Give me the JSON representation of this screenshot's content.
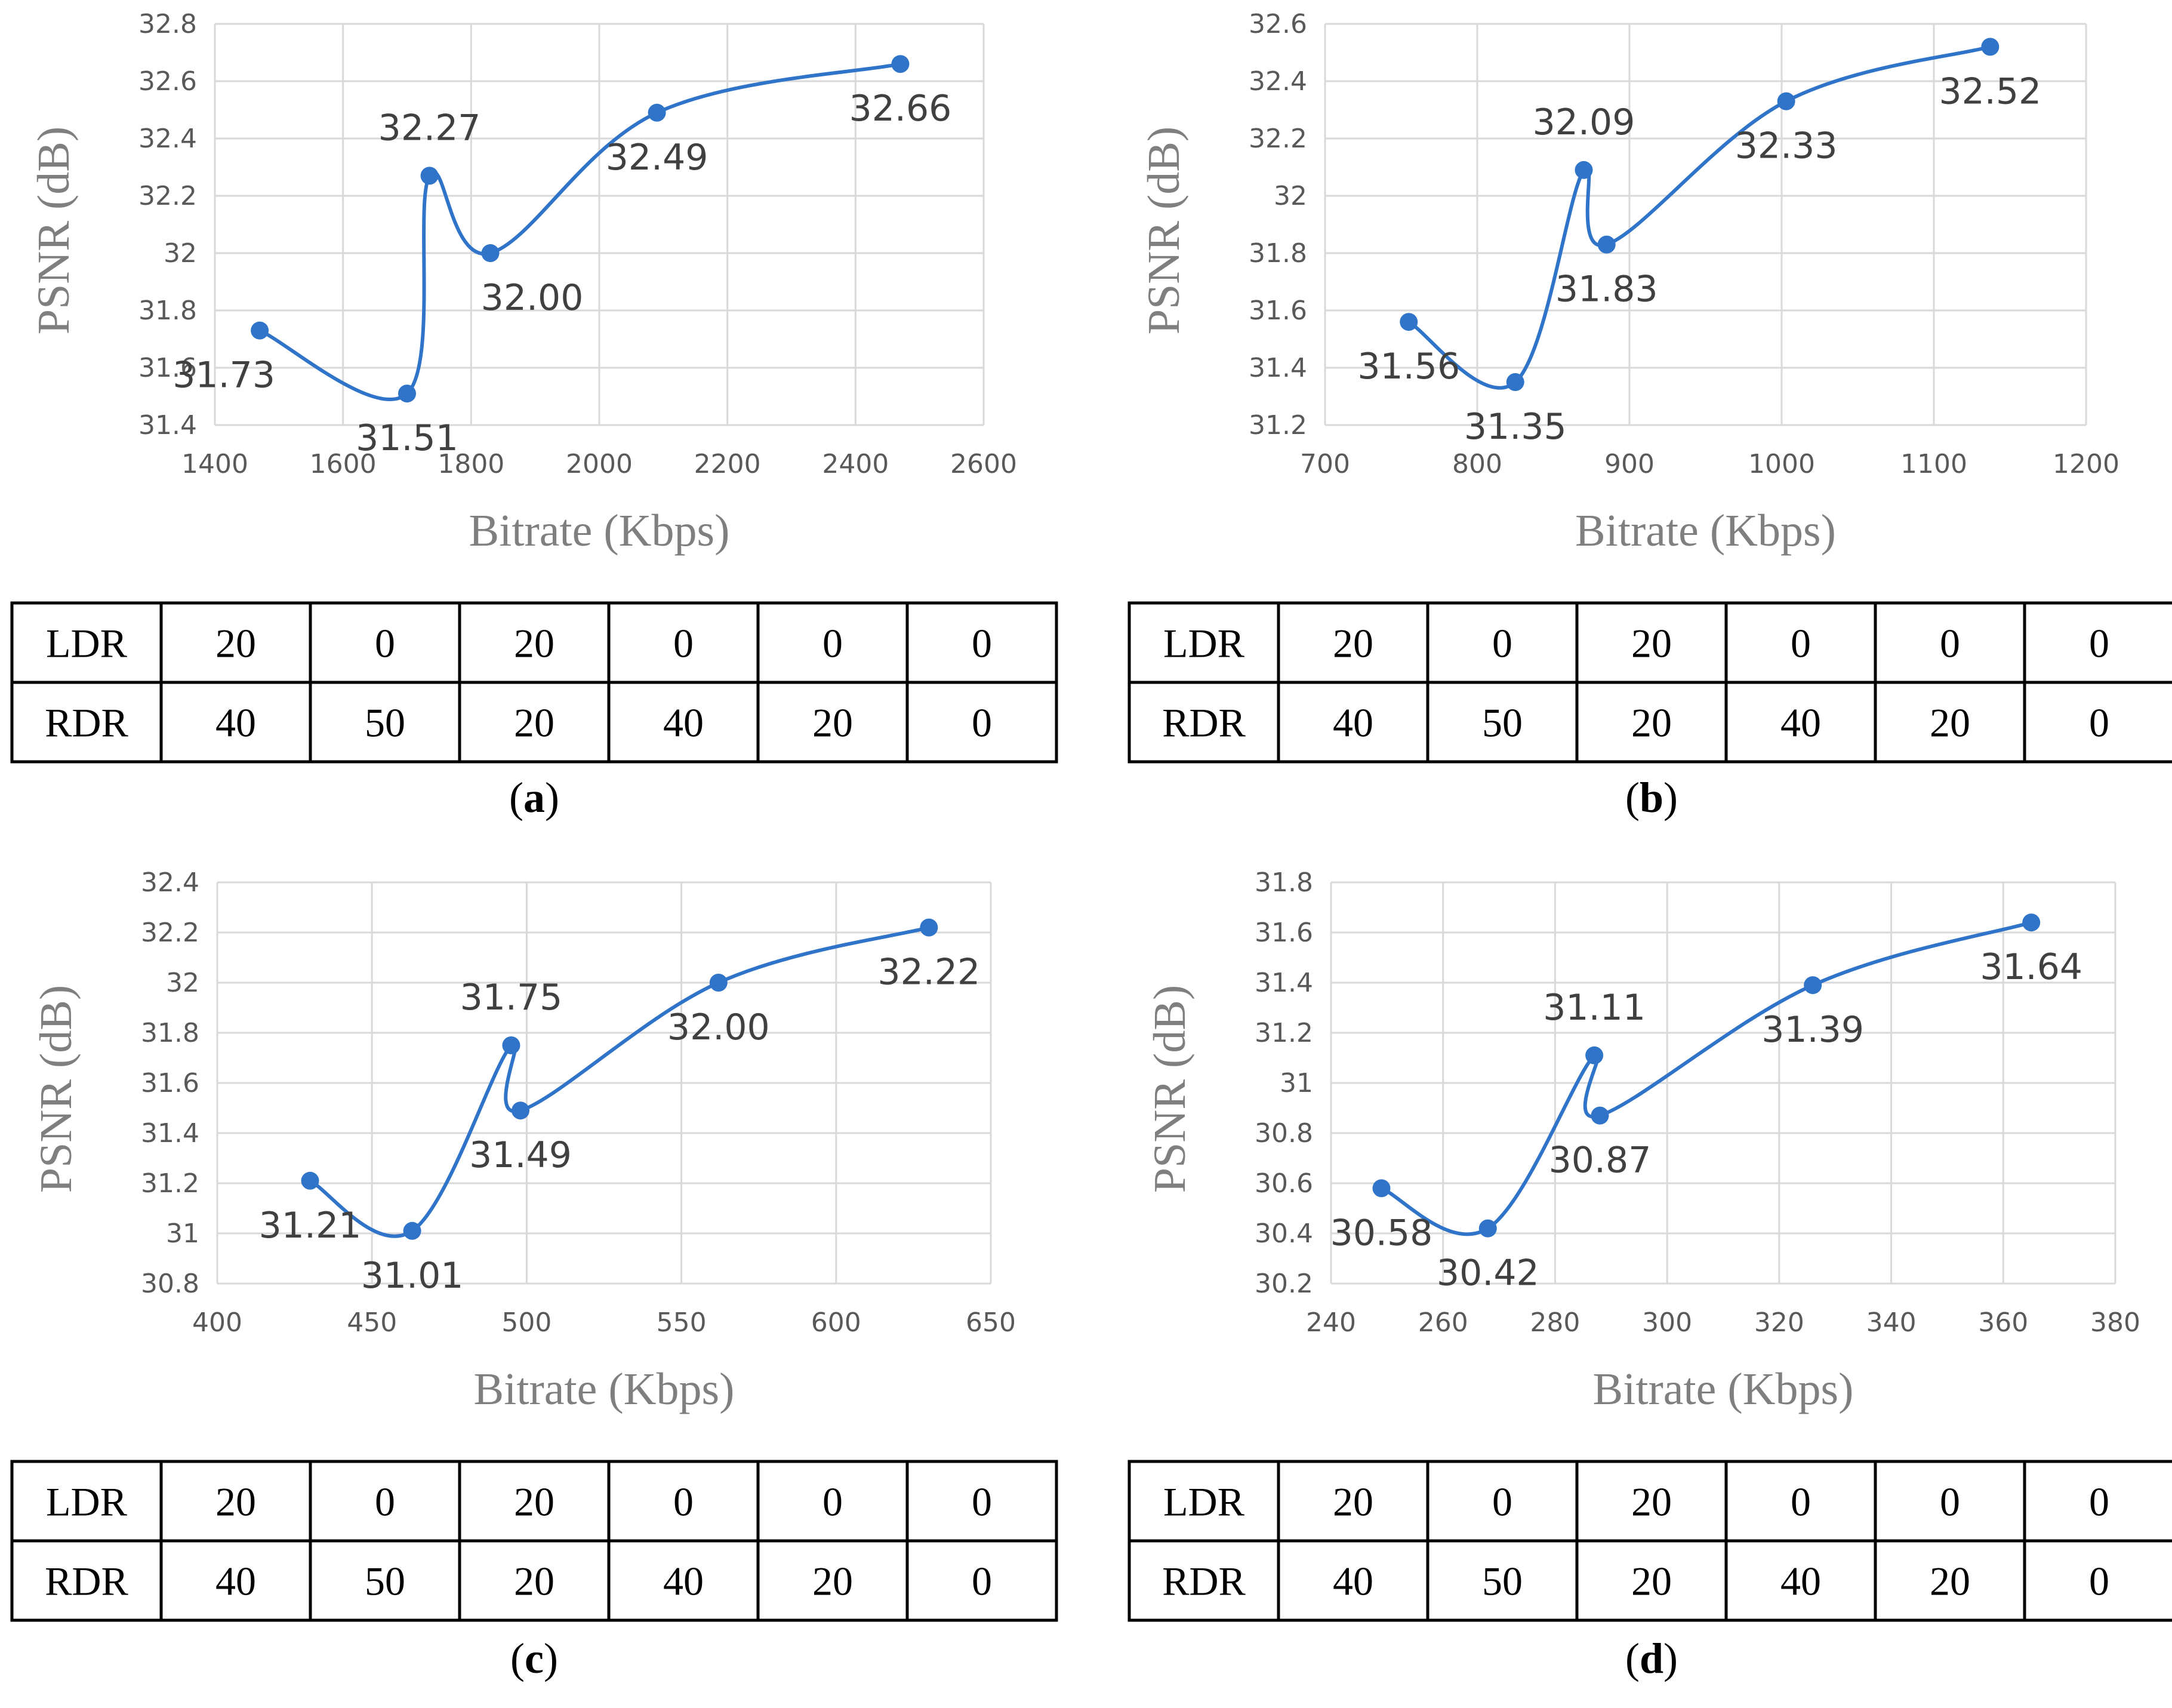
{
  "figure": {
    "panels": [
      {
        "id": "a",
        "caption": "a"
      },
      {
        "id": "b",
        "caption": "b"
      },
      {
        "id": "c",
        "caption": "c"
      },
      {
        "id": "d",
        "caption": "d"
      }
    ]
  },
  "colors": {
    "series": "#2f74c8",
    "grid": "#d9d9d9",
    "tick_text": "#595959",
    "axis_title": "#7f7f7f",
    "label_text": "#404040",
    "table_border": "#000000"
  },
  "chart_data": [
    {
      "type": "line",
      "title": "",
      "xlabel": "Bitrate (Kbps)",
      "ylabel": "PSNR (dB)",
      "xlim": [
        1400,
        2600
      ],
      "xticks": [
        1400,
        1600,
        1800,
        2000,
        2200,
        2400,
        2600
      ],
      "xtick_labels": [
        "1400",
        "1600",
        "1800",
        "2000",
        "2200",
        "2400",
        "2600"
      ],
      "ylim": [
        31.4,
        32.8
      ],
      "yticks": [
        31.4,
        31.6,
        31.8,
        32.0,
        32.2,
        32.4,
        32.6,
        32.8
      ],
      "ytick_labels": [
        "31.4",
        "31.6",
        "31.8",
        "32",
        "32.2",
        "32.4",
        "32.6",
        "32.8"
      ],
      "grid": true,
      "smooth": true,
      "series": [
        {
          "name": "PSNR",
          "x": [
            1470,
            1700,
            1735,
            1830,
            2090,
            2470
          ],
          "y": [
            31.73,
            31.51,
            32.27,
            32.0,
            32.49,
            32.66
          ],
          "labels": [
            "31.73",
            "31.51",
            "32.27",
            "32.00",
            "32.49",
            "32.66"
          ],
          "label_pos": [
            "below-left",
            "below",
            "above",
            "below-right",
            "below",
            "below"
          ]
        }
      ],
      "table": {
        "rows": [
          {
            "header": "LDR",
            "values": [
              "20",
              "0",
              "20",
              "0",
              "0",
              "0"
            ]
          },
          {
            "header": "RDR",
            "values": [
              "40",
              "50",
              "20",
              "40",
              "20",
              "0"
            ]
          }
        ]
      }
    },
    {
      "type": "line",
      "title": "",
      "xlabel": "Bitrate (Kbps)",
      "ylabel": "PSNR (dB)",
      "xlim": [
        700,
        1200
      ],
      "xticks": [
        700,
        800,
        900,
        1000,
        1100,
        1200
      ],
      "xtick_labels": [
        "700",
        "800",
        "900",
        "1000",
        "1100",
        "1200"
      ],
      "ylim": [
        31.2,
        32.6
      ],
      "yticks": [
        31.2,
        31.4,
        31.6,
        31.8,
        32.0,
        32.2,
        32.4,
        32.6
      ],
      "ytick_labels": [
        "31.2",
        "31.4",
        "31.6",
        "31.8",
        "32",
        "32.2",
        "32.4",
        "32.6"
      ],
      "grid": true,
      "smooth": true,
      "series": [
        {
          "name": "PSNR",
          "x": [
            755,
            825,
            870,
            885,
            1003,
            1137
          ],
          "y": [
            31.56,
            31.35,
            32.09,
            31.83,
            32.33,
            32.52
          ],
          "labels": [
            "31.56",
            "31.35",
            "32.09",
            "31.83",
            "32.33",
            "32.52"
          ],
          "label_pos": [
            "below",
            "below",
            "above",
            "below",
            "below",
            "below"
          ]
        }
      ],
      "table": {
        "rows": [
          {
            "header": "LDR",
            "values": [
              "20",
              "0",
              "20",
              "0",
              "0",
              "0"
            ]
          },
          {
            "header": "RDR",
            "values": [
              "40",
              "50",
              "20",
              "40",
              "20",
              "0"
            ]
          }
        ]
      }
    },
    {
      "type": "line",
      "title": "",
      "xlabel": "Bitrate (Kbps)",
      "ylabel": "PSNR (dB)",
      "xlim": [
        400,
        650
      ],
      "xticks": [
        400,
        450,
        500,
        550,
        600,
        650
      ],
      "xtick_labels": [
        "400",
        "450",
        "500",
        "550",
        "600",
        "650"
      ],
      "ylim": [
        30.8,
        32.4
      ],
      "yticks": [
        30.8,
        31.0,
        31.2,
        31.4,
        31.6,
        31.8,
        32.0,
        32.2,
        32.4
      ],
      "ytick_labels": [
        "30.8",
        "31",
        "31.2",
        "31.4",
        "31.6",
        "31.8",
        "32",
        "32.2",
        "32.4"
      ],
      "grid": true,
      "smooth": true,
      "series": [
        {
          "name": "PSNR",
          "x": [
            430,
            463,
            495,
            498,
            562,
            630
          ],
          "y": [
            31.21,
            31.01,
            31.75,
            31.49,
            32.0,
            32.22
          ],
          "labels": [
            "31.21",
            "31.01",
            "31.75",
            "31.49",
            "32.00",
            "32.22"
          ],
          "label_pos": [
            "below",
            "below",
            "above",
            "below",
            "below",
            "below"
          ]
        }
      ],
      "table": {
        "rows": [
          {
            "header": "LDR",
            "values": [
              "20",
              "0",
              "20",
              "0",
              "0",
              "0"
            ]
          },
          {
            "header": "RDR",
            "values": [
              "40",
              "50",
              "20",
              "40",
              "20",
              "0"
            ]
          }
        ]
      }
    },
    {
      "type": "line",
      "title": "",
      "xlabel": "Bitrate (Kbps)",
      "ylabel": "PSNR (dB)",
      "xlim": [
        240,
        380
      ],
      "xticks": [
        240,
        260,
        280,
        300,
        320,
        340,
        360,
        380
      ],
      "xtick_labels": [
        "240",
        "260",
        "280",
        "300",
        "320",
        "340",
        "360",
        "380"
      ],
      "ylim": [
        30.2,
        31.8
      ],
      "yticks": [
        30.2,
        30.4,
        30.6,
        30.8,
        31.0,
        31.2,
        31.4,
        31.6,
        31.8
      ],
      "ytick_labels": [
        "30.2",
        "30.4",
        "30.6",
        "30.8",
        "31",
        "31.2",
        "31.4",
        "31.6",
        "31.8"
      ],
      "grid": true,
      "smooth": true,
      "series": [
        {
          "name": "PSNR",
          "x": [
            249,
            268,
            287,
            288,
            326,
            365
          ],
          "y": [
            30.58,
            30.42,
            31.11,
            30.87,
            31.39,
            31.64
          ],
          "labels": [
            "30.58",
            "30.42",
            "31.11",
            "30.87",
            "31.39",
            "31.64"
          ],
          "label_pos": [
            "below",
            "below",
            "above",
            "below",
            "below",
            "below"
          ]
        }
      ],
      "table": {
        "rows": [
          {
            "header": "LDR",
            "values": [
              "20",
              "0",
              "20",
              "0",
              "0",
              "0"
            ]
          },
          {
            "header": "RDR",
            "values": [
              "40",
              "50",
              "20",
              "40",
              "20",
              "0"
            ]
          }
        ]
      }
    }
  ]
}
